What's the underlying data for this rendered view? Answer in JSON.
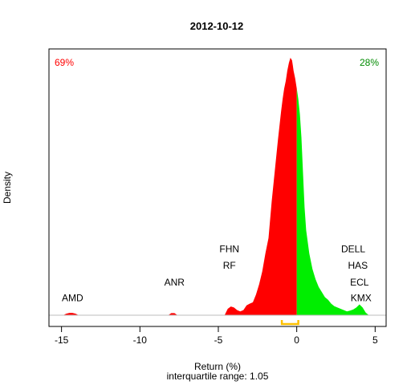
{
  "chart_data": {
    "type": "area",
    "title": "2012-10-12",
    "xlabel": "Return (%)",
    "subtitle": "interquartile range: 1.05",
    "ylabel": "Density",
    "xlim": [
      -15.8,
      5.7
    ],
    "ylim": [
      0,
      1
    ],
    "xticks": [
      -15,
      -10,
      -5,
      0,
      5
    ],
    "split_at": 0,
    "negative_share": "69%",
    "positive_share": "28%",
    "colors": {
      "negative": "#ff0000",
      "positive": "#00ee00",
      "iqr": "#ffc000",
      "baseline": "#bebebe"
    },
    "density": {
      "x": [
        -14.9,
        -14.7,
        -14.5,
        -14.3,
        -14.1,
        -13.9,
        -8.2,
        -8.0,
        -7.8,
        -7.6,
        -4.6,
        -4.4,
        -4.2,
        -4.0,
        -3.8,
        -3.6,
        -3.4,
        -3.2,
        -3.0,
        -2.8,
        -2.6,
        -2.4,
        -2.2,
        -2.0,
        -1.8,
        -1.6,
        -1.4,
        -1.2,
        -1.0,
        -0.9,
        -0.8,
        -0.7,
        -0.6,
        -0.5,
        -0.4,
        -0.3,
        -0.25,
        -0.2,
        -0.1,
        0.0,
        0.1,
        0.2,
        0.3,
        0.4,
        0.5,
        0.6,
        0.8,
        1.0,
        1.2,
        1.4,
        1.6,
        1.8,
        2.0,
        2.2,
        2.4,
        2.6,
        2.8,
        3.0,
        3.2,
        3.4,
        3.6,
        3.8,
        4.0,
        4.2,
        4.4,
        4.6
      ],
      "y": [
        0,
        0.006,
        0.009,
        0.009,
        0.006,
        0,
        0,
        0.008,
        0.008,
        0,
        0,
        0.025,
        0.034,
        0.03,
        0.02,
        0.015,
        0.02,
        0.038,
        0.045,
        0.05,
        0.08,
        0.12,
        0.17,
        0.24,
        0.3,
        0.44,
        0.56,
        0.68,
        0.79,
        0.84,
        0.88,
        0.91,
        0.95,
        0.98,
        1.0,
        0.99,
        0.97,
        0.95,
        0.92,
        0.88,
        0.84,
        0.78,
        0.69,
        0.55,
        0.42,
        0.33,
        0.24,
        0.18,
        0.14,
        0.11,
        0.09,
        0.07,
        0.06,
        0.045,
        0.035,
        0.03,
        0.025,
        0.02,
        0.015,
        0.018,
        0.022,
        0.03,
        0.042,
        0.03,
        0.01,
        0
      ]
    },
    "iqr": [
      -0.95,
      0.1
    ],
    "annotations": [
      {
        "text": "AMD",
        "x": -14.3,
        "y": 0.055,
        "anchor": "middle"
      },
      {
        "text": "ANR",
        "x": -7.8,
        "y": 0.115,
        "anchor": "middle"
      },
      {
        "text": "FHN",
        "x": -4.3,
        "y": 0.245,
        "anchor": "middle"
      },
      {
        "text": "RF",
        "x": -4.3,
        "y": 0.18,
        "anchor": "middle"
      },
      {
        "text": "DELL",
        "x": 3.6,
        "y": 0.245,
        "anchor": "middle"
      },
      {
        "text": "HAS",
        "x": 3.9,
        "y": 0.18,
        "anchor": "middle"
      },
      {
        "text": "ECL",
        "x": 4.0,
        "y": 0.115,
        "anchor": "middle"
      },
      {
        "text": "KMX",
        "x": 4.1,
        "y": 0.055,
        "anchor": "middle"
      }
    ]
  }
}
